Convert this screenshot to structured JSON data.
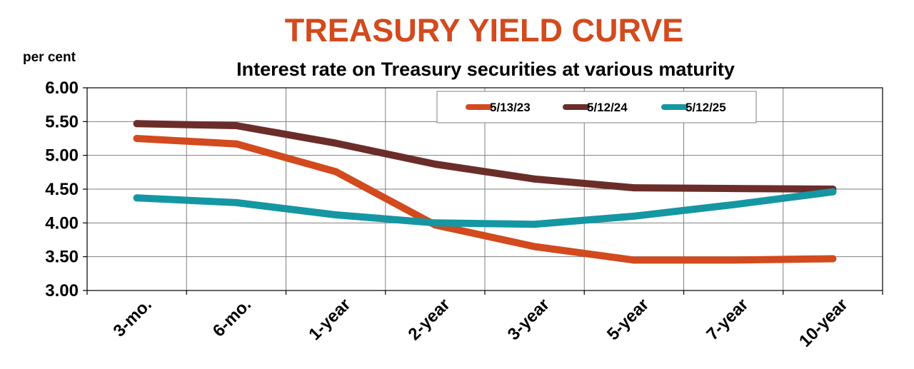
{
  "chart_data": {
    "type": "line",
    "title": "TREASURY YIELD CURVE",
    "subtitle": "Interest rate on Treasury securities at various maturity",
    "ylabel": "per cent",
    "xlabel": "",
    "categories": [
      "3-mo.",
      "6-mo.",
      "1-year",
      "2-year",
      "3-year",
      "5-year",
      "7-year",
      "10-year"
    ],
    "ylim": [
      3.0,
      6.0
    ],
    "yticks": [
      "3.00",
      "3.50",
      "4.00",
      "4.50",
      "5.00",
      "5.50",
      "6.00"
    ],
    "grid": true,
    "legend_position": "top-right",
    "series": [
      {
        "name": "5/13/23",
        "color": "#D24A1E",
        "values": [
          5.25,
          5.17,
          4.76,
          3.97,
          3.65,
          3.45,
          3.45,
          3.47
        ]
      },
      {
        "name": "5/12/24",
        "color": "#6B2D2A",
        "values": [
          5.47,
          5.44,
          5.18,
          4.87,
          4.65,
          4.52,
          4.51,
          4.5
        ]
      },
      {
        "name": "5/12/25",
        "color": "#1497A3",
        "values": [
          4.37,
          4.3,
          4.12,
          4.0,
          3.98,
          4.1,
          4.27,
          4.46
        ]
      }
    ],
    "title_color": "#D24A1E"
  }
}
